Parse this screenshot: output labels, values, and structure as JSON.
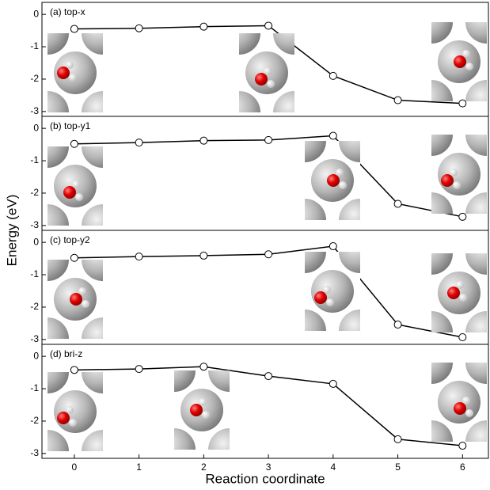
{
  "chart_data": [
    {
      "type": "line",
      "title": "(a) top-x",
      "x": [
        0,
        1,
        2,
        3,
        4,
        5,
        6
      ],
      "values": [
        -0.45,
        -0.43,
        -0.38,
        -0.35,
        -1.9,
        -2.65,
        -2.75
      ],
      "color": "#000000",
      "xlim": [
        -0.5,
        6.4
      ],
      "ylim": [
        -3.15,
        0.37
      ],
      "yticks": [
        -3,
        -2,
        -1,
        0
      ]
    },
    {
      "type": "line",
      "title": "(b) top-y1",
      "x": [
        0,
        1,
        2,
        3,
        4,
        5,
        6
      ],
      "values": [
        -0.48,
        -0.44,
        -0.38,
        -0.36,
        -0.23,
        -2.33,
        -2.73
      ],
      "color": "#000000",
      "xlim": [
        -0.5,
        6.4
      ],
      "ylim": [
        -3.15,
        0.37
      ],
      "yticks": [
        -3,
        -2,
        -1,
        0
      ]
    },
    {
      "type": "line",
      "title": "(c) top-y2",
      "x": [
        0,
        1,
        2,
        3,
        4,
        5,
        6
      ],
      "values": [
        -0.48,
        -0.44,
        -0.41,
        -0.37,
        -0.12,
        -2.54,
        -2.93
      ],
      "color": "#000000",
      "xlim": [
        -0.5,
        6.4
      ],
      "ylim": [
        -3.15,
        0.37
      ],
      "yticks": [
        -3,
        -2,
        -1,
        0
      ]
    },
    {
      "type": "line",
      "title": "(d) bri-z",
      "x": [
        0,
        1,
        2,
        3,
        4,
        5,
        6
      ],
      "values": [
        -0.42,
        -0.39,
        -0.32,
        -0.61,
        -0.85,
        -2.56,
        -2.76
      ],
      "color": "#000000",
      "xlim": [
        -0.5,
        6.4
      ],
      "ylim": [
        -3.15,
        0.37
      ],
      "yticks": [
        -3,
        -2,
        -1,
        0
      ],
      "xticks": [
        0,
        1,
        2,
        3,
        4,
        5,
        6
      ]
    }
  ],
  "ylabel": "Energy (eV)",
  "xlabel": "Reaction coordinate"
}
